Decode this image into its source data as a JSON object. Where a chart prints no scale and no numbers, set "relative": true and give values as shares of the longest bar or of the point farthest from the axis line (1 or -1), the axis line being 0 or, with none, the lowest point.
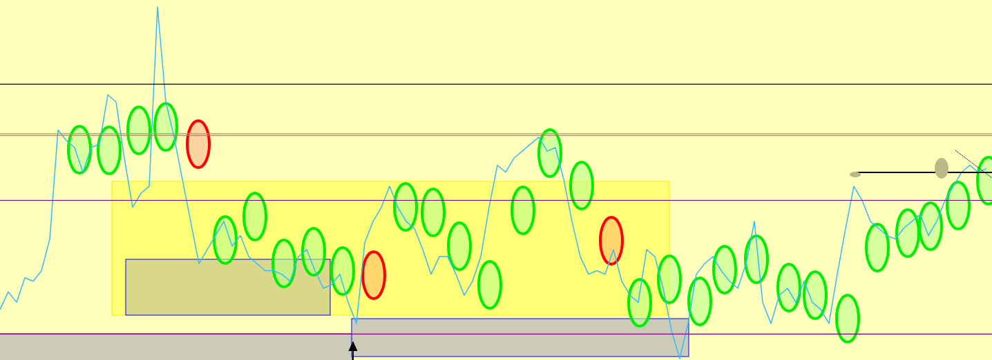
{
  "chart_data": {
    "type": "line",
    "relative": true,
    "categories": [
      null,
      null,
      null,
      null,
      null,
      null,
      null,
      null,
      null,
      null,
      null,
      null,
      null,
      null,
      null,
      null,
      null,
      null,
      null,
      null,
      null,
      null,
      null,
      null,
      null,
      null,
      null,
      null,
      null,
      null,
      null,
      null,
      null,
      null,
      null,
      null,
      null,
      null,
      null,
      null,
      null,
      null,
      null,
      null,
      null,
      null,
      null,
      null,
      null,
      null,
      null,
      null,
      null,
      null,
      null,
      null,
      null,
      null,
      null,
      null,
      null,
      null,
      null,
      null,
      null,
      null,
      null,
      null,
      null,
      null,
      null,
      null,
      null,
      null,
      null,
      null,
      null,
      null,
      null,
      null,
      null,
      null,
      null,
      null,
      null,
      null,
      null,
      null,
      null,
      null,
      null,
      null,
      null,
      null,
      null,
      null,
      null,
      null,
      null,
      null,
      null,
      null,
      null,
      null,
      null,
      null,
      null,
      null,
      null,
      null,
      null,
      null,
      null,
      null,
      null,
      null,
      null,
      null,
      null,
      null
    ],
    "series": [
      {
        "color": "#33bbff",
        "values": [
          0.14,
          0.19,
          0.16,
          0.23,
          0.22,
          0.25,
          0.34,
          0.65,
          0.62,
          0.6,
          0.53,
          0.6,
          0.61,
          0.75,
          0.73,
          0.57,
          0.43,
          0.47,
          0.49,
          1,
          0.73,
          0.63,
          0.51,
          0.39,
          0.27,
          0.31,
          0.35,
          0.39,
          0.32,
          0.35,
          0.29,
          0.27,
          0.25,
          0.25,
          0.24,
          0.22,
          0.29,
          0.31,
          0.25,
          0.2,
          0.21,
          0.24,
          0.16,
          0.1,
          0.33,
          0.39,
          0.43,
          0.49,
          0.43,
          0.39,
          0.37,
          0.31,
          0.24,
          0.29,
          0.29,
          0.24,
          0.18,
          0.22,
          0.29,
          0.43,
          0.55,
          0.53,
          0.57,
          0.59,
          0.61,
          0.63,
          0.59,
          0.6,
          0.51,
          0.39,
          0.29,
          0.24,
          0.25,
          0.24,
          0.31,
          0.22,
          0.18,
          0.16,
          0.31,
          0.29,
          0.2,
          0.08,
          0,
          0.1,
          0.24,
          0.27,
          0.29,
          0.25,
          0.22,
          0.2,
          0.27,
          0.39,
          0.16,
          0.1,
          0.18,
          0.2,
          0.16,
          0.22,
          0.16,
          0.14,
          0.1,
          0.24,
          0.37,
          0.49,
          0.45,
          0.39,
          0.37,
          0.35,
          0.34,
          0.37,
          0.39,
          0.41,
          0.35,
          0.39,
          0.45,
          0.49,
          0.53,
          0.55,
          0.53,
          0.54
        ]
      }
    ],
    "ref_lines": [
      {
        "axis": "y",
        "value": 0.78,
        "color": "#000000"
      },
      {
        "axis": "y",
        "value": 0.64,
        "color": "#66cc66"
      },
      {
        "axis": "y",
        "value": 0.635,
        "color": "#e06666"
      },
      {
        "axis": "y",
        "value": 0.45,
        "color": "#800080"
      },
      {
        "axis": "y",
        "value": 0.07,
        "color": "#800080"
      }
    ]
  }
}
